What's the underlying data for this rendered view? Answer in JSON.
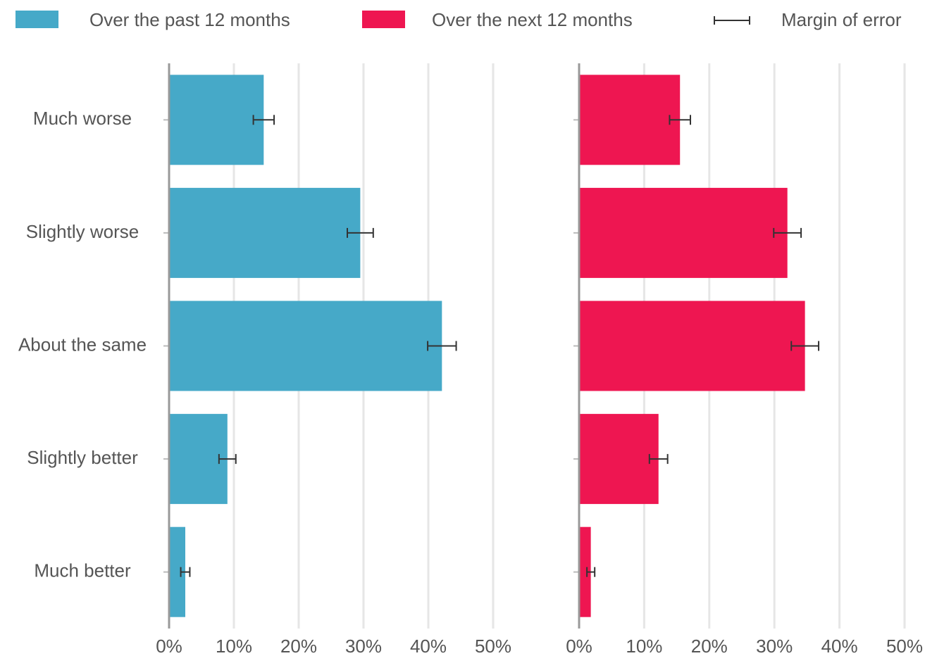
{
  "chart_data": {
    "type": "bar",
    "orientation": "horizontal",
    "categories": [
      "Much worse",
      "Slightly worse",
      "About the same",
      "Slightly better",
      "Much better"
    ],
    "series": [
      {
        "name": "Over the past 12 months",
        "color": "#46a9c8",
        "values": [
          14.6,
          29.5,
          42.1,
          9.0,
          2.5
        ],
        "errors": [
          1.6,
          2.0,
          2.2,
          1.3,
          0.7
        ]
      },
      {
        "name": "Over the next 12 months",
        "color": "#ee1651",
        "values": [
          15.5,
          32.0,
          34.7,
          12.2,
          1.8
        ],
        "errors": [
          1.6,
          2.1,
          2.1,
          1.4,
          0.6
        ]
      }
    ],
    "error_legend": "Margin of error",
    "xlim": [
      0,
      50
    ],
    "xticks": [
      {
        "value": 0,
        "label": "0%"
      },
      {
        "value": 10,
        "label": "10%"
      },
      {
        "value": 20,
        "label": "20%"
      },
      {
        "value": 30,
        "label": "30%"
      },
      {
        "value": 40,
        "label": "40%"
      },
      {
        "value": 50,
        "label": "50%"
      }
    ],
    "grid": true
  }
}
